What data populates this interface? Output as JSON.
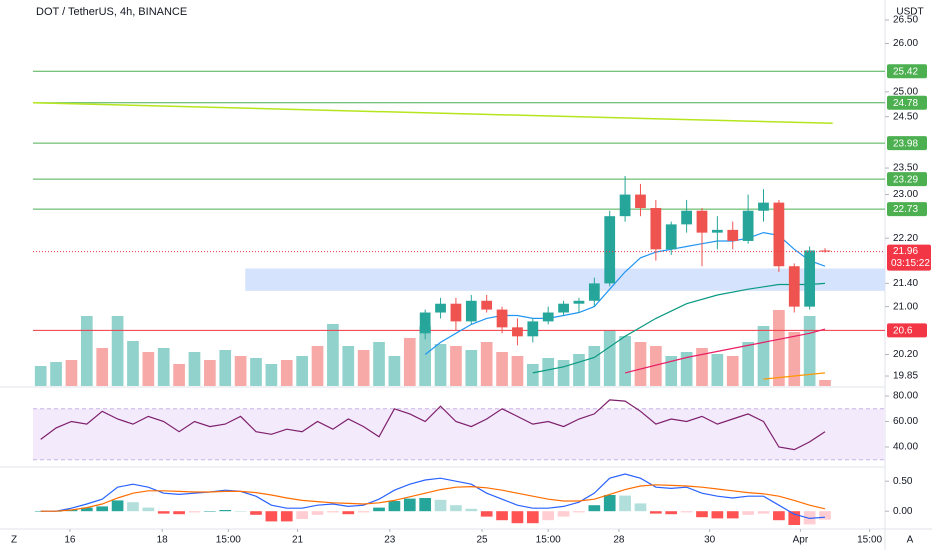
{
  "toolbar": {
    "left": "Z",
    "right": "A"
  },
  "chart_data": [
    {
      "type": "candlestick",
      "title": "DOT / TetherUS, 4h, BINANCE",
      "currency": "USDT",
      "log_scale": true,
      "grid": false,
      "xlim": [
        -0.5,
        54.9
      ],
      "xticks": [
        {
          "value": 1.9,
          "label": "16"
        },
        {
          "value": 7.9,
          "label": "18"
        },
        {
          "value": 12.2,
          "label": "15:00"
        },
        {
          "value": 16.7,
          "label": "21"
        },
        {
          "value": 22.7,
          "label": "23"
        },
        {
          "value": 28.7,
          "label": "25"
        },
        {
          "value": 33.0,
          "label": "15:00"
        },
        {
          "value": 37.6,
          "label": "28"
        },
        {
          "value": 43.5,
          "label": "30"
        },
        {
          "value": 49.4,
          "label": "Apr"
        },
        {
          "value": 53.9,
          "label": "15:00"
        }
      ],
      "ylim": [
        19.69,
        26.76
      ],
      "yticks": [
        {
          "value": 26.5,
          "label": "26.50"
        },
        {
          "value": 26,
          "label": "26.00"
        },
        {
          "value": 25,
          "label": "25.00"
        },
        {
          "value": 24.5,
          "label": "24.50"
        },
        {
          "value": 23.5,
          "label": "23.50"
        },
        {
          "value": 23,
          "label": "23.00"
        },
        {
          "value": 22.2,
          "label": "22.20"
        },
        {
          "value": 21.4,
          "label": "21.40"
        },
        {
          "value": 21,
          "label": "21.00"
        },
        {
          "value": 20.2,
          "label": "20.20"
        },
        {
          "value": 19.85,
          "label": "19.85"
        }
      ],
      "up_color": "#26a69a",
      "down_color": "#ef5350",
      "x": [
        25,
        26,
        27,
        28,
        29,
        30,
        31,
        32,
        33,
        34,
        35,
        36,
        37,
        38,
        39,
        40,
        41,
        42,
        43,
        44,
        45,
        46,
        47,
        48,
        49,
        50,
        51
      ],
      "open": [
        20.55,
        20.9,
        21.05,
        20.75,
        21.1,
        20.95,
        20.65,
        20.5,
        20.75,
        20.9,
        21.05,
        21.1,
        21.4,
        22.6,
        23.0,
        22.75,
        22.0,
        22.45,
        22.7,
        22.3,
        22.35,
        22.15,
        22.7,
        22.85,
        21.7,
        21.0,
        21.98
      ],
      "high": [
        20.95,
        21.15,
        21.15,
        21.2,
        21.2,
        21.0,
        20.8,
        20.8,
        21.0,
        21.1,
        21.15,
        21.5,
        22.7,
        23.35,
        23.2,
        22.9,
        22.5,
        22.9,
        22.75,
        22.6,
        22.5,
        23.0,
        23.1,
        22.9,
        21.75,
        22.05,
        22.02
      ],
      "low": [
        20.45,
        20.8,
        20.6,
        20.7,
        20.9,
        20.55,
        20.35,
        20.4,
        20.7,
        20.85,
        20.9,
        21.0,
        21.35,
        22.5,
        22.6,
        21.8,
        21.9,
        22.3,
        21.7,
        22.0,
        22.0,
        22.1,
        22.5,
        21.6,
        20.9,
        20.95,
        21.94
      ],
      "close": [
        20.9,
        21.05,
        20.75,
        21.1,
        20.95,
        20.65,
        20.5,
        20.75,
        20.9,
        21.05,
        21.1,
        21.4,
        22.6,
        23.0,
        22.75,
        22.0,
        22.45,
        22.7,
        22.3,
        22.35,
        22.15,
        22.7,
        22.85,
        21.7,
        21.0,
        21.98,
        21.96
      ],
      "volume_lim": [
        0,
        100
      ],
      "volume_series": [
        {
          "color": "#92d2cc",
          "values": [
            20,
            24,
            null,
            70,
            null,
            70,
            45,
            null,
            38,
            null,
            34,
            null,
            36,
            null,
            28,
            22,
            null,
            30,
            null,
            62,
            40,
            null,
            44,
            30,
            null,
            60,
            42,
            null,
            36,
            null,
            null,
            null,
            22,
            28,
            26,
            32,
            40,
            56,
            50,
            null,
            null,
            30,
            34,
            null,
            32,
            null,
            44,
            60,
            null,
            null,
            70,
            null
          ]
        },
        {
          "color": "#f7a9a7",
          "values": [
            null,
            null,
            26,
            null,
            38,
            null,
            null,
            34,
            null,
            22,
            null,
            26,
            null,
            30,
            null,
            null,
            26,
            null,
            40,
            null,
            null,
            36,
            null,
            null,
            48,
            null,
            null,
            40,
            null,
            44,
            34,
            30,
            null,
            null,
            null,
            null,
            null,
            null,
            null,
            44,
            40,
            null,
            null,
            38,
            null,
            30,
            null,
            null,
            76,
            54,
            null,
            6
          ]
        }
      ],
      "overlays": [
        {
          "color": "#2196f3",
          "x": [
            25,
            26,
            27,
            28,
            29,
            30,
            31,
            32,
            33,
            34,
            35,
            36,
            37,
            38,
            39,
            40,
            41,
            42,
            43,
            44,
            45,
            46,
            47,
            48,
            49,
            50,
            51
          ],
          "values": [
            20.2,
            20.4,
            20.55,
            20.7,
            20.8,
            20.85,
            20.85,
            20.8,
            20.8,
            20.85,
            20.9,
            21.0,
            21.3,
            21.6,
            21.85,
            21.95,
            22.0,
            22.05,
            22.1,
            22.15,
            22.15,
            22.2,
            22.3,
            22.25,
            22.0,
            21.8,
            21.7
          ]
        },
        {
          "color": "#089981",
          "x": [
            32,
            34,
            36,
            38,
            40,
            42,
            44,
            46,
            48,
            50,
            51
          ],
          "values": [
            19.9,
            20.0,
            20.15,
            20.5,
            20.8,
            21.05,
            21.2,
            21.3,
            21.38,
            21.38,
            21.4
          ]
        },
        {
          "color": "#e91e63",
          "x": [
            38,
            42,
            46,
            50,
            51
          ],
          "values": [
            19.9,
            20.15,
            20.35,
            20.55,
            20.62
          ]
        },
        {
          "color": "#ff9800",
          "x": [
            47,
            51
          ],
          "values": [
            19.8,
            19.9
          ]
        }
      ],
      "levels": [
        {
          "value": 25.42,
          "color": "#4caf50"
        },
        {
          "value": 24.78,
          "color": "#4caf50"
        },
        {
          "value": 23.98,
          "color": "#4caf50"
        },
        {
          "value": 23.29,
          "color": "#4caf50"
        },
        {
          "value": 22.73,
          "color": "#4caf50"
        },
        {
          "value": 20.6,
          "color": "#f23645"
        }
      ],
      "trendline": {
        "color": "#b5e61d",
        "x": [
          -0.5,
          51.5
        ],
        "values": [
          24.78,
          24.37
        ]
      },
      "zone": {
        "color": "#d5e3fc",
        "x_start": 13.3,
        "low": 21.27,
        "high": 21.66
      },
      "last_price": {
        "value": 21.96,
        "countdown": "03:15:22",
        "color": "#f23645"
      }
    },
    {
      "type": "line",
      "color": "#7e1f6b",
      "band": [
        30,
        70
      ],
      "band_color": "#f3eafc",
      "ylim": [
        25.1,
        86.3
      ],
      "yticks": [
        {
          "value": 80,
          "label": "80.00"
        },
        {
          "value": 60,
          "label": "60.00"
        },
        {
          "value": 40,
          "label": "40.00"
        }
      ],
      "values": [
        46,
        55,
        60,
        58,
        68,
        62,
        58,
        64,
        60,
        52,
        60,
        56,
        58,
        64,
        52,
        50,
        54,
        52,
        60,
        54,
        62,
        56,
        48,
        70,
        66,
        60,
        72,
        60,
        56,
        62,
        70,
        64,
        58,
        60,
        56,
        62,
        66,
        77,
        76,
        68,
        58,
        62,
        60,
        64,
        58,
        62,
        66,
        60,
        40,
        38,
        44,
        52
      ]
    },
    {
      "type": "macd",
      "ylim": [
        -0.28,
        0.72
      ],
      "yticks": [
        {
          "value": 0.5,
          "label": "0.50"
        },
        {
          "value": 0,
          "label": "0.00"
        }
      ],
      "hist_colors": [
        "#26a69a",
        "#b2dfdb",
        "#ff5252",
        "#ffcdd2"
      ],
      "histogram": [
        0,
        0,
        0.03,
        0.06,
        0.08,
        0.18,
        0.15,
        0.06,
        -0.04,
        -0.05,
        -0.02,
        0,
        0.02,
        0,
        -0.06,
        -0.17,
        -0.17,
        -0.13,
        -0.06,
        -0.02,
        -0.05,
        -0.02,
        0.06,
        0.17,
        0.21,
        0.22,
        0.19,
        0.1,
        0.04,
        -0.09,
        -0.15,
        -0.2,
        -0.2,
        -0.15,
        -0.09,
        -0.02,
        0.1,
        0.27,
        0.26,
        0.13,
        -0.04,
        -0.05,
        -0.02,
        -0.1,
        -0.12,
        -0.12,
        -0.06,
        -0.04,
        -0.15,
        -0.23,
        -0.22,
        -0.14
      ],
      "series": [
        {
          "color": "#2962ff",
          "values": [
            0,
            0,
            0.05,
            0.12,
            0.2,
            0.4,
            0.45,
            0.4,
            0.3,
            0.28,
            0.3,
            0.32,
            0.35,
            0.33,
            0.25,
            0.1,
            0.05,
            0.05,
            0.1,
            0.12,
            0.08,
            0.1,
            0.2,
            0.35,
            0.45,
            0.52,
            0.55,
            0.5,
            0.45,
            0.3,
            0.2,
            0.1,
            0.05,
            0.05,
            0.08,
            0.15,
            0.3,
            0.55,
            0.62,
            0.55,
            0.4,
            0.38,
            0.4,
            0.3,
            0.25,
            0.22,
            0.25,
            0.25,
            0.1,
            -0.05,
            -0.12,
            -0.1
          ]
        },
        {
          "color": "#ff6d00",
          "values": [
            0,
            0,
            0.02,
            0.06,
            0.12,
            0.22,
            0.3,
            0.34,
            0.34,
            0.33,
            0.32,
            0.32,
            0.33,
            0.33,
            0.31,
            0.27,
            0.22,
            0.18,
            0.16,
            0.14,
            0.13,
            0.12,
            0.14,
            0.18,
            0.24,
            0.3,
            0.36,
            0.4,
            0.41,
            0.39,
            0.35,
            0.3,
            0.25,
            0.2,
            0.17,
            0.17,
            0.2,
            0.28,
            0.36,
            0.42,
            0.44,
            0.43,
            0.42,
            0.4,
            0.37,
            0.34,
            0.31,
            0.29,
            0.25,
            0.18,
            0.1,
            0.04
          ]
        }
      ]
    }
  ]
}
